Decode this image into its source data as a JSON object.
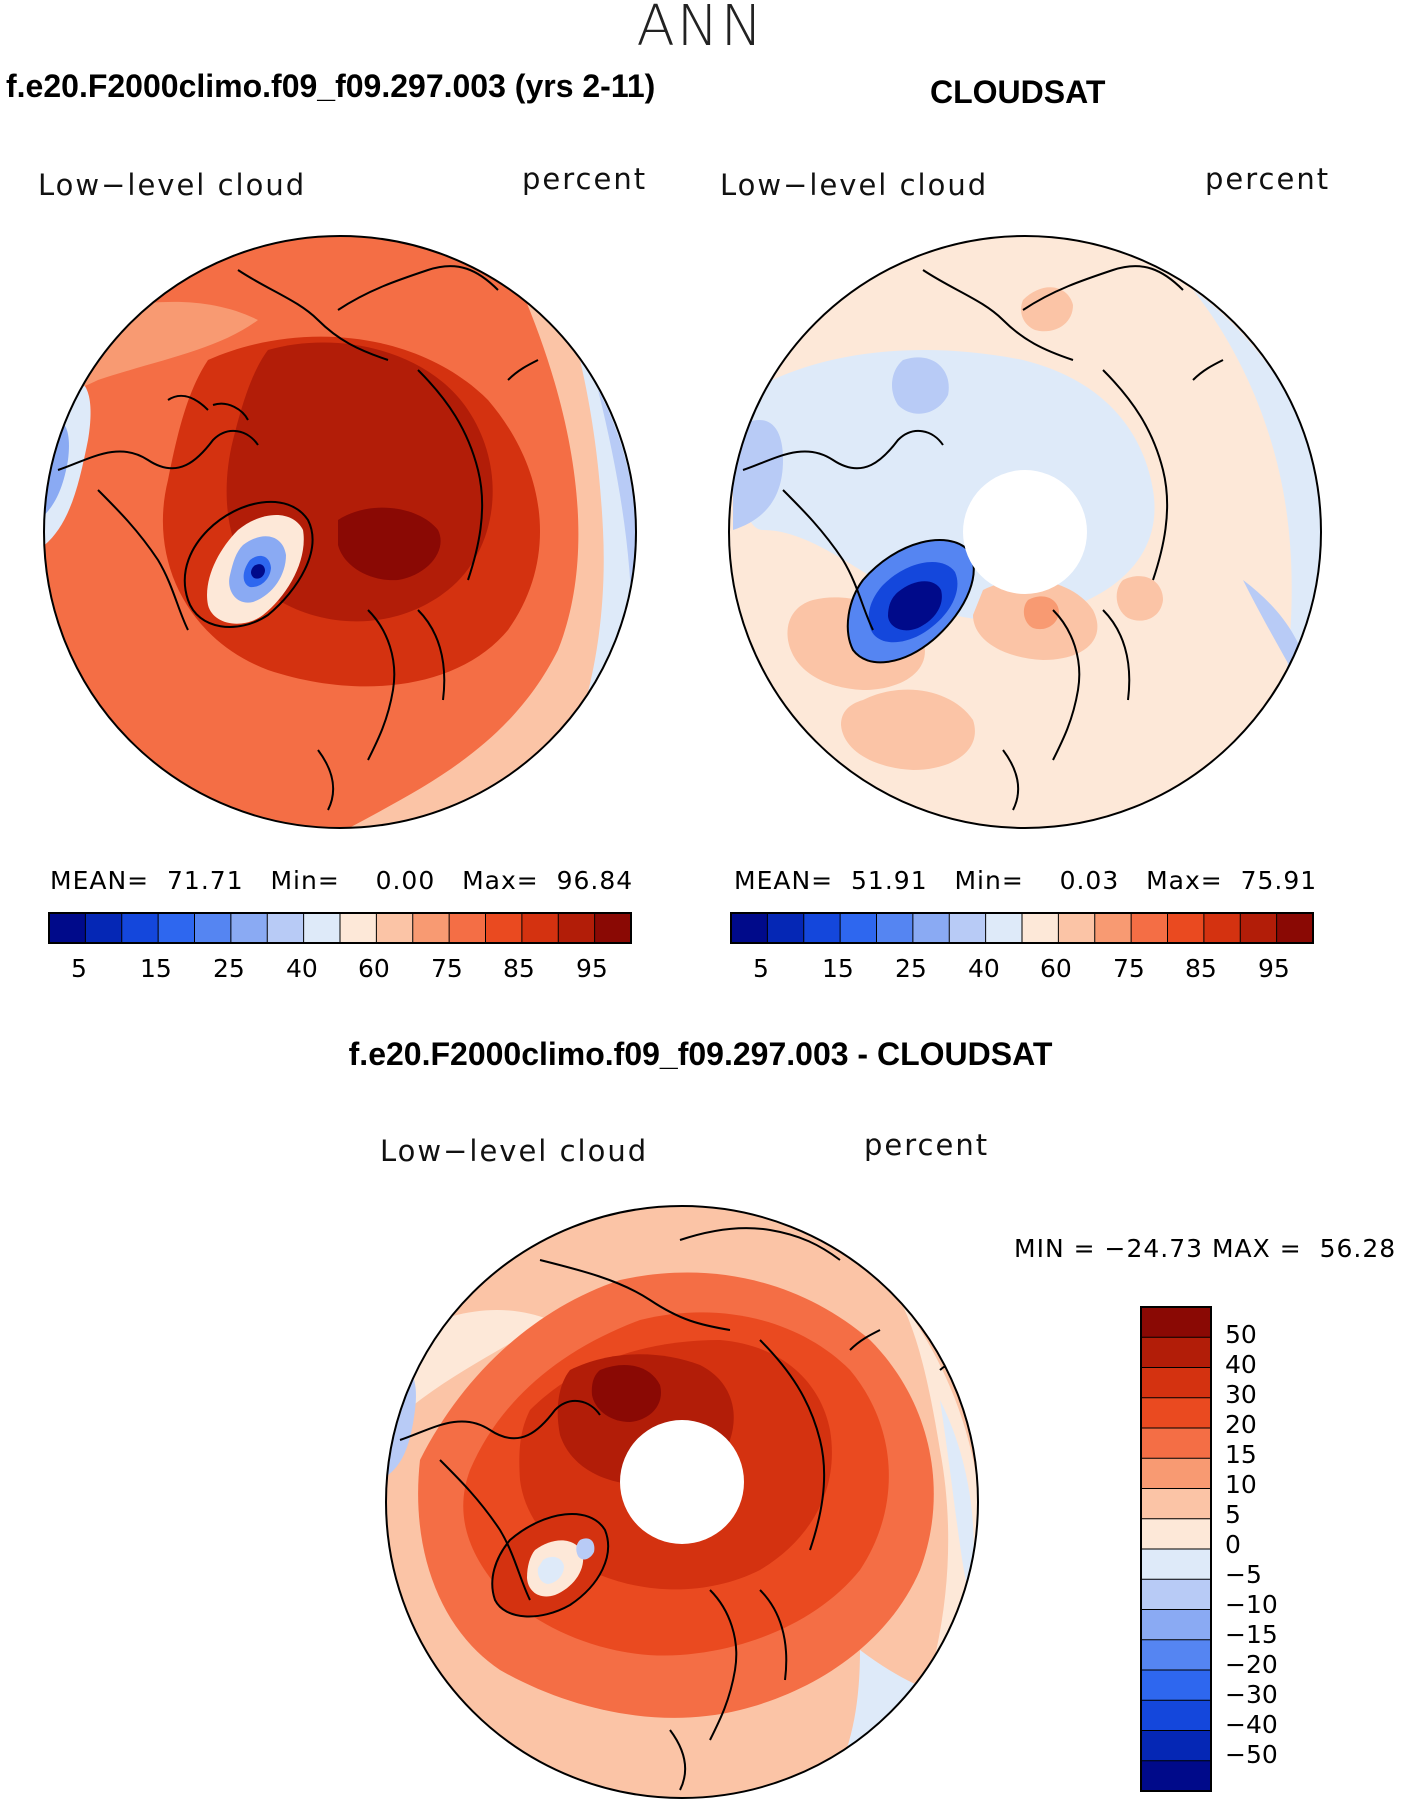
{
  "season": "ANN",
  "colors": {
    "abs_palette": [
      "#000a8a",
      "#0527b5",
      "#1447dc",
      "#2e67ef",
      "#5585f2",
      "#8aaaf3",
      "#b8cbf6",
      "#deeaf9",
      "#fde8d8",
      "#fbc4a6",
      "#f89a72",
      "#f46e45",
      "#ea4a20",
      "#d43210",
      "#b21d08",
      "#8a0904"
    ],
    "diff_palette": [
      "#000a8a",
      "#0527b5",
      "#1447dc",
      "#2e67ef",
      "#5585f2",
      "#8aaaf3",
      "#b8cbf6",
      "#deeaf9",
      "#fde8d8",
      "#fbc4a6",
      "#f89a72",
      "#f46e45",
      "#ea4a20",
      "#d43210",
      "#b21d08",
      "#8a0904"
    ],
    "ocean_neutral": "#fde8d8",
    "pole_hole": "#ffffff",
    "coastline": "#000000"
  },
  "panels": {
    "model": {
      "title": "f.e20.F2000climo.f09_f09.297.003 (yrs 2-11)",
      "variable": "Low−level cloud",
      "units": "percent",
      "stats": {
        "mean_label": "MEAN=",
        "mean": "71.71",
        "min_label": "Min=",
        "min": "0.00",
        "max_label": "Max=",
        "max": "96.84"
      }
    },
    "obs": {
      "title": "CLOUDSAT",
      "variable": "Low−level cloud",
      "units": "percent",
      "stats": {
        "mean_label": "MEAN=",
        "mean": "51.91",
        "min_label": "Min=",
        "min": "0.03",
        "max_label": "Max=",
        "max": "75.91"
      }
    },
    "diff": {
      "title": "f.e20.F2000climo.f09_f09.297.003 - CLOUDSAT",
      "variable": "Low−level cloud",
      "units": "percent",
      "stats": {
        "min_label": "MIN =",
        "min": "−24.73",
        "max_label": "MAX =",
        "max": "56.28"
      }
    }
  },
  "abs_colorbar": {
    "tick_labels": [
      "5",
      "15",
      "25",
      "40",
      "60",
      "75",
      "85",
      "95"
    ]
  },
  "diff_colorbar": {
    "tick_labels": [
      "50",
      "40",
      "30",
      "20",
      "15",
      "10",
      "5",
      "0",
      "−5",
      "−10",
      "−15",
      "−20",
      "−30",
      "−40",
      "−50"
    ]
  }
}
